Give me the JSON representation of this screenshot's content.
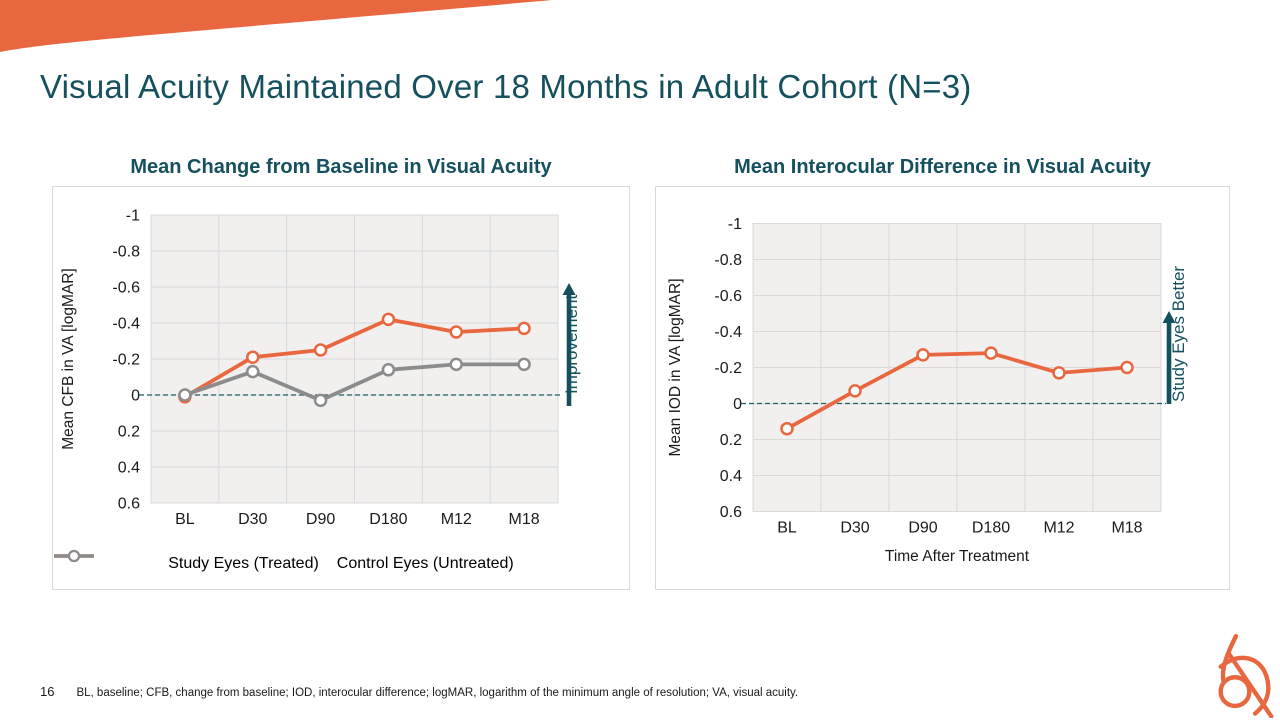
{
  "slide": {
    "title": "Visual Acuity Maintained Over 18 Months in Adult Cohort (N=3)",
    "page_number": "16",
    "footnote": "BL, baseline; CFB, change from baseline; IOD, interocular difference; logMAR, logarithm of the minimum angle of resolution; VA, visual acuity."
  },
  "colors": {
    "accent_orange": "#E8673F",
    "teal": "#15505E",
    "gray_series": "#8C8C8C",
    "panel_bg": "#F1F0EE",
    "grid": "#D9D9D9",
    "text": "#1A1A1A"
  },
  "icons": {
    "corner_swoosh": "orange-curved-corner-swoosh",
    "logo": "orange-abstract-loop-logo",
    "improvement_arrow": "up-arrow",
    "study_eyes_better_arrow": "up-arrow"
  },
  "chart_data": [
    {
      "type": "line",
      "title": "Mean Change from Baseline in Visual Acuity",
      "categories": [
        "BL",
        "D30",
        "D90",
        "D180",
        "M12",
        "M18"
      ],
      "series": [
        {
          "name": "Study Eyes (Treated)",
          "color": "#E8673F",
          "values": [
            0.01,
            -0.21,
            -0.25,
            -0.42,
            -0.35,
            -0.37
          ]
        },
        {
          "name": "Control Eyes (Untreated)",
          "color": "#8C8C8C",
          "values": [
            0,
            -0.13,
            0.03,
            -0.14,
            -0.17,
            -0.17
          ]
        }
      ],
      "xlabel": "",
      "ylabel": "Mean CFB in VA [logMAR]",
      "ylim": [
        -1,
        0.6
      ],
      "y_axis_inverted": true,
      "yticks": [
        -1,
        -0.8,
        -0.6,
        -0.4,
        -0.2,
        0,
        0.2,
        0.4,
        0.6
      ],
      "zero_reference_line": true,
      "grid": true,
      "annotation": "Improvement",
      "legend_position": "bottom"
    },
    {
      "type": "line",
      "title": "Mean Interocular Difference in Visual Acuity",
      "categories": [
        "BL",
        "D30",
        "D90",
        "D180",
        "M12",
        "M18"
      ],
      "series": [
        {
          "name": "Study Eyes (Treated)",
          "color": "#E8673F",
          "values": [
            0.14,
            -0.07,
            -0.27,
            -0.28,
            -0.17,
            -0.2
          ]
        }
      ],
      "xlabel": "Time After Treatment",
      "ylabel": "Mean IOD in VA [logMAR]",
      "ylim": [
        -1,
        0.6
      ],
      "y_axis_inverted": true,
      "yticks": [
        -1,
        -0.8,
        -0.6,
        -0.4,
        -0.2,
        0,
        0.2,
        0.4,
        0.6
      ],
      "zero_reference_line": true,
      "grid": true,
      "annotation": "Study Eyes Better",
      "legend_position": "none"
    }
  ]
}
